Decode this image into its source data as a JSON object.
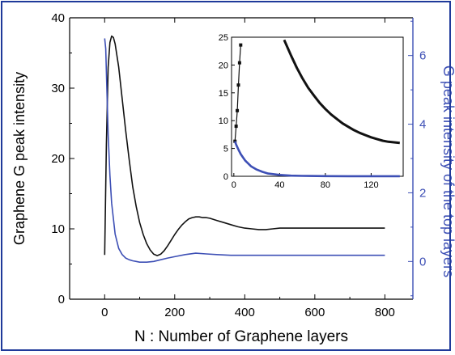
{
  "chart_data": [
    {
      "type": "line",
      "xlabel": "N : Number of Graphene layers",
      "ylabel": "Graphene G peak intensity",
      "y2label": "G peak intensity of the top layers",
      "xlim": [
        -100,
        880
      ],
      "ylim": [
        0,
        40
      ],
      "y2lim": [
        -1.1,
        7.1
      ],
      "xticks": [
        0,
        200,
        400,
        600,
        800
      ],
      "yticks": [
        0,
        10,
        20,
        30,
        40
      ],
      "y2ticks": [
        0,
        2,
        4,
        6
      ],
      "series": [
        {
          "axis": "left",
          "color": "#111111",
          "x": [
            0,
            5,
            10,
            15,
            20,
            25,
            30,
            40,
            50,
            60,
            70,
            80,
            90,
            100,
            110,
            120,
            130,
            140,
            150,
            160,
            170,
            180,
            190,
            200,
            210,
            220,
            230,
            240,
            250,
            260,
            270,
            280,
            290,
            300,
            320,
            340,
            360,
            380,
            400,
            420,
            440,
            460,
            480,
            500,
            550,
            600,
            650,
            700,
            750,
            800
          ],
          "y": [
            6.3,
            22,
            33,
            36.5,
            37.4,
            37.2,
            36.3,
            33,
            28.5,
            24,
            19.8,
            16,
            13.2,
            10.9,
            9.2,
            7.9,
            7,
            6.4,
            6.2,
            6.4,
            6.9,
            7.6,
            8.4,
            9.2,
            9.9,
            10.5,
            11,
            11.4,
            11.6,
            11.7,
            11.7,
            11.6,
            11.6,
            11.5,
            11.2,
            10.9,
            10.6,
            10.3,
            10.1,
            10,
            9.9,
            9.9,
            10,
            10.1,
            10.1,
            10.1,
            10.1,
            10.1,
            10.1,
            10.1
          ]
        },
        {
          "axis": "right",
          "color": "#3d4fb5",
          "x": [
            0,
            3,
            6,
            10,
            15,
            20,
            30,
            40,
            50,
            60,
            70,
            80,
            90,
            100,
            120,
            140,
            160,
            180,
            200,
            230,
            260,
            290,
            320,
            360,
            400,
            500,
            600,
            700,
            800
          ],
          "y": [
            6.5,
            6.2,
            5.1,
            3.7,
            2.5,
            1.7,
            0.8,
            0.38,
            0.2,
            0.1,
            0.05,
            0.02,
            0,
            -0.02,
            -0.02,
            0,
            0.05,
            0.1,
            0.14,
            0.2,
            0.24,
            0.22,
            0.2,
            0.18,
            0.18,
            0.18,
            0.18,
            0.18,
            0.18
          ]
        }
      ]
    },
    {
      "type": "line",
      "inset": true,
      "xlim": [
        -2,
        148
      ],
      "ylim": [
        0,
        25
      ],
      "xticks": [
        0,
        40,
        80,
        120
      ],
      "yticks": [
        0,
        5,
        10,
        15,
        20,
        25
      ],
      "series": [
        {
          "color": "#111111",
          "marker": "square",
          "x": [
            1,
            2,
            3,
            4,
            5,
            6
          ],
          "y": [
            6.3,
            9,
            11.8,
            16.4,
            20.4,
            23.6
          ]
        },
        {
          "color": "#111111",
          "x": [
            44,
            50,
            55,
            60,
            65,
            70,
            75,
            80,
            85,
            90,
            95,
            100,
            105,
            110,
            115,
            120,
            125,
            130,
            135,
            140,
            145
          ],
          "y": [
            24.5,
            21.7,
            19.5,
            17.6,
            15.9,
            14.5,
            13.2,
            12.1,
            11.1,
            10.3,
            9.5,
            8.9,
            8.3,
            7.8,
            7.4,
            7,
            6.7,
            6.4,
            6.2,
            6.1,
            6
          ]
        },
        {
          "color": "#3d4fb5",
          "x": [
            1,
            2,
            4,
            6,
            8,
            10,
            15,
            20,
            25,
            30,
            40,
            50,
            60,
            80,
            100,
            120,
            145
          ],
          "y": [
            6.3,
            5.7,
            4.8,
            4,
            3.4,
            2.8,
            1.8,
            1.2,
            0.8,
            0.5,
            0.25,
            0.12,
            0.07,
            0.03,
            0.02,
            0.02,
            0.02
          ]
        }
      ]
    }
  ]
}
